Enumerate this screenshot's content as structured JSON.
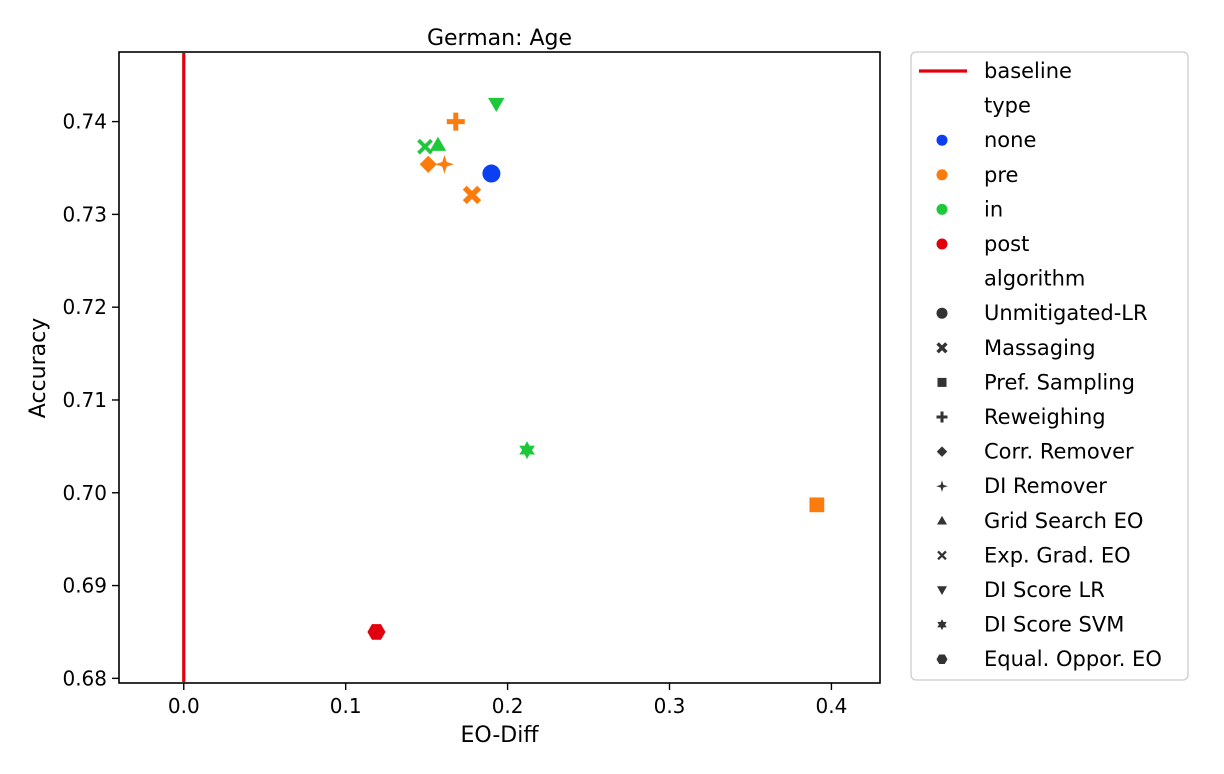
{
  "chart_data": {
    "type": "scatter",
    "title": "German: Age",
    "xlabel": "EO-Diff",
    "ylabel": "Accuracy",
    "xlim": [
      -0.04,
      0.43
    ],
    "ylim": [
      0.6795,
      0.7475
    ],
    "xticks": [
      0.0,
      0.1,
      0.2,
      0.3,
      0.4
    ],
    "xtick_labels": [
      "0.0",
      "0.1",
      "0.2",
      "0.3",
      "0.4"
    ],
    "yticks": [
      0.68,
      0.69,
      0.7,
      0.71,
      0.72,
      0.73,
      0.74
    ],
    "ytick_labels": [
      "0.68",
      "0.69",
      "0.70",
      "0.71",
      "0.72",
      "0.73",
      "0.74"
    ],
    "grid": false,
    "legend_position": "outside-right",
    "baseline": {
      "label": "baseline",
      "x": 0.0,
      "color": "#e0000e"
    },
    "type_colors": {
      "none": "#0b3ff1",
      "pre": "#fb7b0c",
      "in": "#1dc93b",
      "post": "#e0000e"
    },
    "legend": {
      "type_title": "type",
      "types": [
        "none",
        "pre",
        "in",
        "post"
      ],
      "algorithm_title": "algorithm",
      "algorithms": [
        {
          "name": "Unmitigated-LR",
          "marker": "circle"
        },
        {
          "name": "Massaging",
          "marker": "x"
        },
        {
          "name": "Pref. Sampling",
          "marker": "square"
        },
        {
          "name": "Reweighing",
          "marker": "plus"
        },
        {
          "name": "Corr. Remover",
          "marker": "diamond"
        },
        {
          "name": "DI Remover",
          "marker": "star4"
        },
        {
          "name": "Grid Search EO",
          "marker": "triangle-up"
        },
        {
          "name": "Exp. Grad. EO",
          "marker": "x-thin"
        },
        {
          "name": "DI Score LR",
          "marker": "triangle-down"
        },
        {
          "name": "DI Score SVM",
          "marker": "star6"
        },
        {
          "name": "Equal. Oppor. EO",
          "marker": "hexagon"
        }
      ]
    },
    "points": [
      {
        "algorithm": "Unmitigated-LR",
        "type": "none",
        "x": 0.19,
        "y": 0.7344
      },
      {
        "algorithm": "Massaging",
        "type": "pre",
        "x": 0.178,
        "y": 0.7321
      },
      {
        "algorithm": "Pref. Sampling",
        "type": "pre",
        "x": 0.391,
        "y": 0.6987
      },
      {
        "algorithm": "Reweighing",
        "type": "pre",
        "x": 0.168,
        "y": 0.74
      },
      {
        "algorithm": "Corr. Remover",
        "type": "pre",
        "x": 0.151,
        "y": 0.7354
      },
      {
        "algorithm": "DI Remover",
        "type": "pre",
        "x": 0.161,
        "y": 0.7354
      },
      {
        "algorithm": "Grid Search EO",
        "type": "in",
        "x": 0.157,
        "y": 0.7375
      },
      {
        "algorithm": "Exp. Grad. EO",
        "type": "in",
        "x": 0.149,
        "y": 0.7373
      },
      {
        "algorithm": "DI Score LR",
        "type": "in",
        "x": 0.193,
        "y": 0.7419
      },
      {
        "algorithm": "DI Score SVM",
        "type": "in",
        "x": 0.212,
        "y": 0.7046
      },
      {
        "algorithm": "Equal. Oppor. EO",
        "type": "post",
        "x": 0.119,
        "y": 0.685
      }
    ]
  }
}
